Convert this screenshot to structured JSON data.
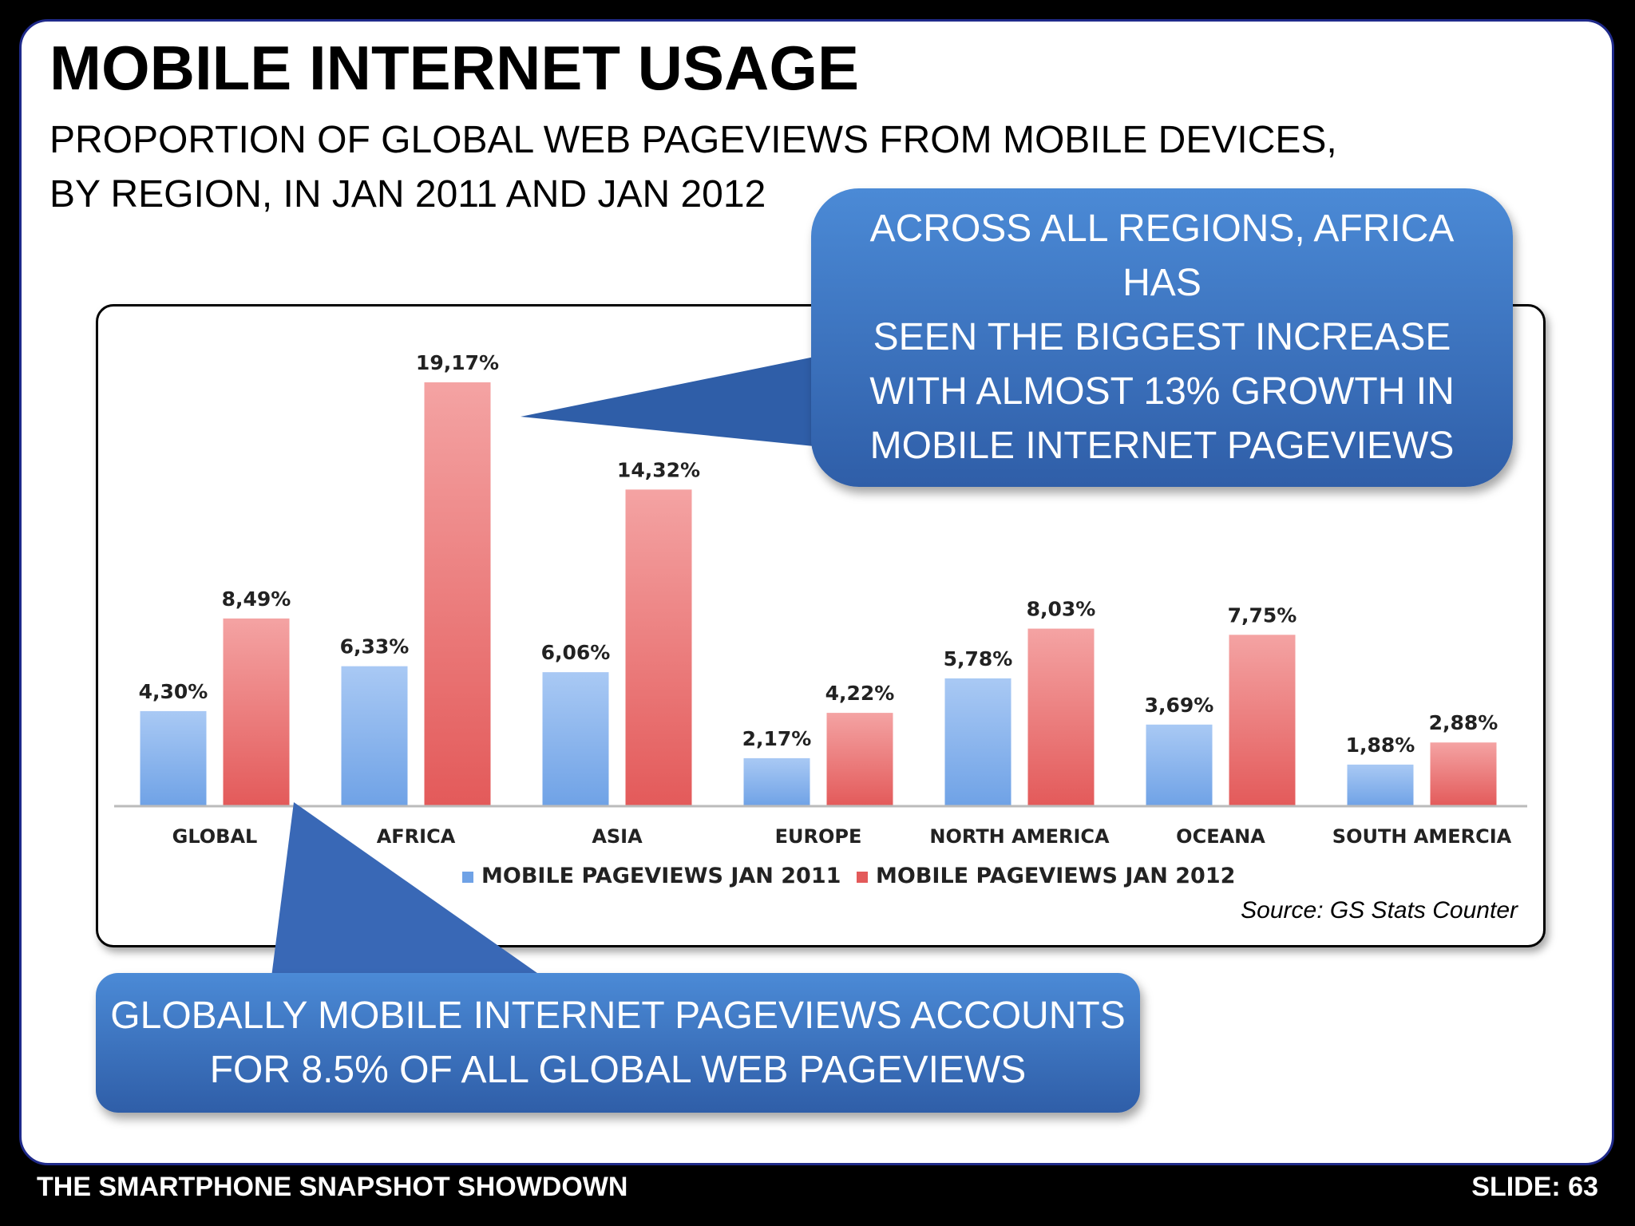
{
  "slide": {
    "title": "MOBILE INTERNET USAGE",
    "subtitle_line1": "PROPORTION OF GLOBAL WEB PAGEVIEWS FROM MOBILE DEVICES,",
    "subtitle_line2": "BY REGION, IN JAN 2011 AND JAN 2012",
    "source": "Source: GS Stats Counter",
    "footer_left": "THE SMARTPHONE SNAPSHOT SHOWDOWN",
    "footer_right": "SLIDE: 63"
  },
  "callouts": {
    "top": [
      "ACROSS ALL REGIONS, AFRICA HAS",
      "SEEN THE BIGGEST INCREASE",
      "WITH ALMOST 13% GROWTH IN",
      "MOBILE INTERNET PAGEVIEWS"
    ],
    "bottom": [
      "GLOBALLY MOBILE INTERNET PAGEVIEWS ACCOUNTS",
      "FOR 8.5% OF ALL GLOBAL WEB PAGEVIEWS"
    ]
  },
  "colors": {
    "series_2011": "#6fa2e6",
    "series_2012": "#e35a5a",
    "callout_blue": "#3c72c0",
    "frame": "#000000"
  },
  "chart_data": {
    "type": "bar",
    "categories": [
      "GLOBAL",
      "AFRICA",
      "ASIA",
      "EUROPE",
      "NORTH AMERICA",
      "OCEANA",
      "SOUTH AMERCIA"
    ],
    "series": [
      {
        "name": "MOBILE PAGEVIEWS JAN 2011",
        "values": [
          4.3,
          6.33,
          6.06,
          2.17,
          5.78,
          3.69,
          1.88
        ],
        "labels": [
          "4,30%",
          "6,33%",
          "6,06%",
          "2,17%",
          "5,78%",
          "3,69%",
          "1,88%"
        ]
      },
      {
        "name": "MOBILE PAGEVIEWS JAN 2012",
        "values": [
          8.49,
          19.17,
          14.32,
          4.22,
          8.03,
          7.75,
          2.88
        ],
        "labels": [
          "8,49%",
          "19,17%",
          "14,32%",
          "4,22%",
          "8,03%",
          "7,75%",
          "2,88%"
        ]
      }
    ],
    "legend_position": "bottom",
    "grid": false,
    "ylim": [
      0,
      20
    ]
  }
}
